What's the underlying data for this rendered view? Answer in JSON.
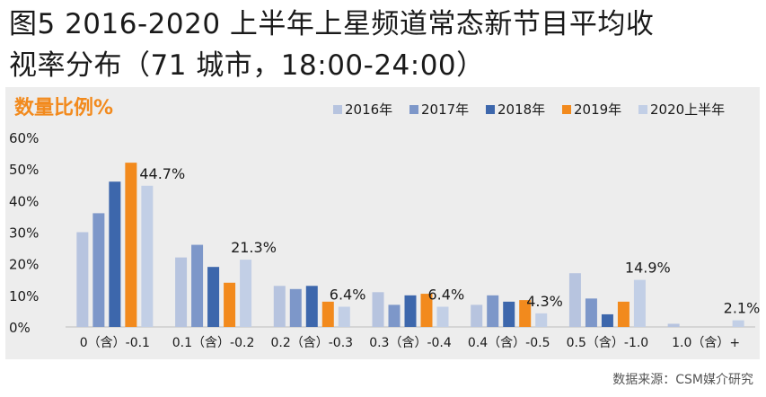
{
  "title_line1": "图5  2016-2020 上半年上星频道常态新节目平均收",
  "title_line2": "视率分布（71 城市，18:00-24:00）",
  "source": "数据来源：CSM媒介研究",
  "colors": {
    "2016年": "#b7c4df",
    "2017年": "#7d97c9",
    "2018年": "#3d67ac",
    "2019年": "#f28a1d",
    "2020上半年": "#c2cfe6",
    "ylabel": "#f28a1d",
    "background": "#ededed"
  },
  "chart_data": {
    "type": "bar",
    "ylabel": "数量比例%",
    "ylim": [
      0,
      60
    ],
    "yticks": [
      "0%",
      "10%",
      "20%",
      "30%",
      "40%",
      "50%",
      "60%"
    ],
    "legend_position": "top-right",
    "grid": false,
    "categories": [
      "0（含）-0.1",
      "0.1（含）-0.2",
      "0.2（含）-0.3",
      "0.3（含）-0.4",
      "0.4（含）-0.5",
      "0.5（含）-1.0",
      "1.0（含）+"
    ],
    "series": [
      {
        "name": "2016年",
        "values": [
          30,
          22,
          13,
          11,
          7,
          17,
          1
        ]
      },
      {
        "name": "2017年",
        "values": [
          36,
          26,
          12,
          7,
          10,
          9,
          0
        ]
      },
      {
        "name": "2018年",
        "values": [
          46,
          19,
          13,
          10,
          8,
          4,
          0
        ]
      },
      {
        "name": "2019年",
        "values": [
          52,
          14,
          8,
          10.5,
          8.5,
          8,
          0
        ]
      },
      {
        "name": "2020上半年",
        "values": [
          44.7,
          21.3,
          6.4,
          6.4,
          4.3,
          14.9,
          2.1
        ]
      }
    ],
    "data_labels": [
      "44.7%",
      "21.3%",
      "6.4%",
      "6.4%",
      "4.3%",
      "14.9%",
      "2.1%"
    ]
  }
}
